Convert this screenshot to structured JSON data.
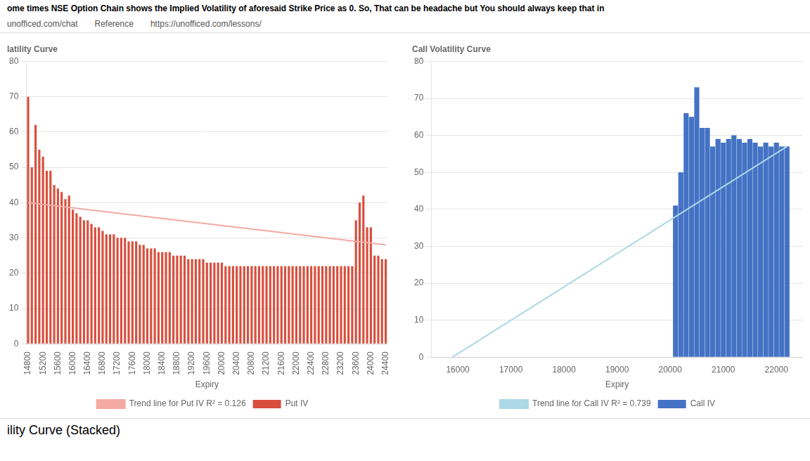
{
  "title": "ome times NSE Option Chain shows the Implied Volatility of aforesaid Strike Price as 0. So, That can be headache but You should always keep that in",
  "annotations": [
    "unofficed.com/chat",
    "Reference",
    "https://unofficed.com/lessons/"
  ],
  "subtitle": "ility Curve (Stacked)",
  "chart_data": [
    {
      "type": "bar",
      "title": "latility Curve",
      "xlabel": "Expiry",
      "categories": [
        14800,
        null,
        null,
        null,
        15200,
        null,
        null,
        null,
        15600,
        null,
        null,
        null,
        16000,
        null,
        null,
        null,
        16400,
        null,
        null,
        null,
        16800,
        null,
        null,
        null,
        17200,
        null,
        null,
        null,
        17600,
        null,
        null,
        null,
        18000,
        null,
        null,
        null,
        18400,
        null,
        null,
        null,
        18800,
        null,
        null,
        null,
        19200,
        null,
        null,
        null,
        19600,
        null,
        null,
        null,
        20000,
        null,
        null,
        null,
        20400,
        null,
        null,
        null,
        20800,
        null,
        null,
        null,
        21200,
        null,
        null,
        null,
        21600,
        null,
        null,
        null,
        22000,
        null,
        null,
        null,
        22400,
        null,
        null,
        null,
        22800,
        null,
        null,
        null,
        23200,
        null,
        null,
        null,
        23600,
        null,
        null,
        null,
        24000,
        null,
        null,
        null,
        24400
      ],
      "ylim": [
        0,
        80
      ],
      "yticks": [
        0,
        10,
        20,
        30,
        40,
        50,
        60,
        70,
        80
      ],
      "grid": true,
      "legend": "bottom",
      "series": [
        {
          "name": "Put IV",
          "type": "bar",
          "color": "#D94F3D",
          "values": [
            70,
            50,
            62,
            55,
            53,
            49,
            49,
            45,
            44,
            43,
            41,
            42,
            38,
            37,
            36,
            35,
            35,
            34,
            33,
            33,
            32,
            31,
            31,
            31,
            30,
            30,
            30,
            29,
            29,
            29,
            28,
            28,
            27,
            27,
            27,
            26,
            26,
            26,
            26,
            25,
            25,
            25,
            25,
            24,
            24,
            24,
            24,
            24,
            23,
            23,
            23,
            23,
            23,
            22,
            22,
            22,
            22,
            22,
            22,
            22,
            22,
            22,
            22,
            22,
            22,
            22,
            22,
            22,
            22,
            22,
            22,
            22,
            22,
            22,
            22,
            22,
            22,
            22,
            22,
            22,
            22,
            22,
            22,
            22,
            22,
            22,
            22,
            22,
            35,
            40,
            42,
            33,
            33,
            25,
            25,
            24,
            24
          ]
        },
        {
          "name": "Trend line for Put IV R² = 0.126",
          "type": "line",
          "color": "#F4A9A3",
          "marker": "none",
          "values": [
            40,
            null,
            null,
            null,
            null,
            null,
            null,
            null,
            null,
            null,
            null,
            null,
            null,
            null,
            null,
            null,
            null,
            null,
            null,
            null,
            null,
            null,
            null,
            null,
            null,
            null,
            null,
            null,
            null,
            null,
            null,
            null,
            null,
            null,
            null,
            null,
            null,
            null,
            null,
            null,
            null,
            null,
            null,
            null,
            null,
            null,
            null,
            null,
            null,
            null,
            null,
            null,
            null,
            null,
            null,
            null,
            null,
            null,
            null,
            null,
            null,
            null,
            null,
            null,
            null,
            null,
            null,
            null,
            null,
            null,
            null,
            null,
            null,
            null,
            null,
            null,
            null,
            null,
            null,
            null,
            null,
            null,
            null,
            null,
            null,
            null,
            null,
            null,
            null,
            null,
            null,
            null,
            null,
            null,
            null,
            null,
            28
          ]
        }
      ]
    },
    {
      "type": "bar",
      "title": "Call Volatility Curve",
      "xlabel": "Expiry",
      "xlim": [
        15500,
        22500
      ],
      "xticks": [
        16000,
        17000,
        18000,
        19000,
        20000,
        21000,
        22000
      ],
      "ylim": [
        0,
        80
      ],
      "yticks": [
        0,
        10,
        20,
        30,
        40,
        50,
        60,
        70,
        80
      ],
      "grid": true,
      "legend": "bottom",
      "series": [
        {
          "name": "Call IV",
          "type": "bar",
          "color": "#4472C4",
          "x": [
            15900,
            16000,
            16100,
            16200,
            16300,
            16400,
            16500,
            16600,
            16700,
            16800,
            16900,
            17000,
            17100,
            17200,
            17300,
            17400,
            17500,
            17600,
            17700,
            17800,
            17900,
            18000,
            18100,
            18200,
            18300,
            18400,
            18500,
            18600,
            18700,
            18800,
            18900,
            19000,
            19100,
            19200,
            19300,
            19400,
            19500,
            19600,
            19700,
            19800,
            19900,
            20000,
            20100,
            20200,
            20300,
            20400,
            20500,
            20600,
            20700,
            20800,
            20900,
            21000,
            21100,
            21200,
            21300,
            21400,
            21500,
            21600,
            21700,
            21800,
            21900,
            22000,
            22100,
            22200
          ],
          "values": [
            0,
            0,
            0,
            0,
            0,
            0,
            0,
            0,
            0,
            0,
            0,
            0,
            0,
            0,
            0,
            0,
            0,
            0,
            0,
            0,
            0,
            0,
            0,
            0,
            0,
            0,
            0,
            0,
            0,
            0,
            0,
            0,
            0,
            0,
            0,
            0,
            0,
            0,
            0,
            0,
            0,
            0,
            41,
            50,
            66,
            65,
            73,
            62,
            62,
            57,
            59,
            58,
            59,
            60,
            59,
            58,
            59,
            58,
            57,
            58,
            57,
            58,
            57,
            57
          ]
        },
        {
          "name": "Trend line for Call IV R² = 0.739",
          "type": "line",
          "color": "#ADD8E6",
          "marker": "none",
          "x": [
            15900,
            22200
          ],
          "values": [
            0,
            57
          ]
        }
      ]
    }
  ]
}
